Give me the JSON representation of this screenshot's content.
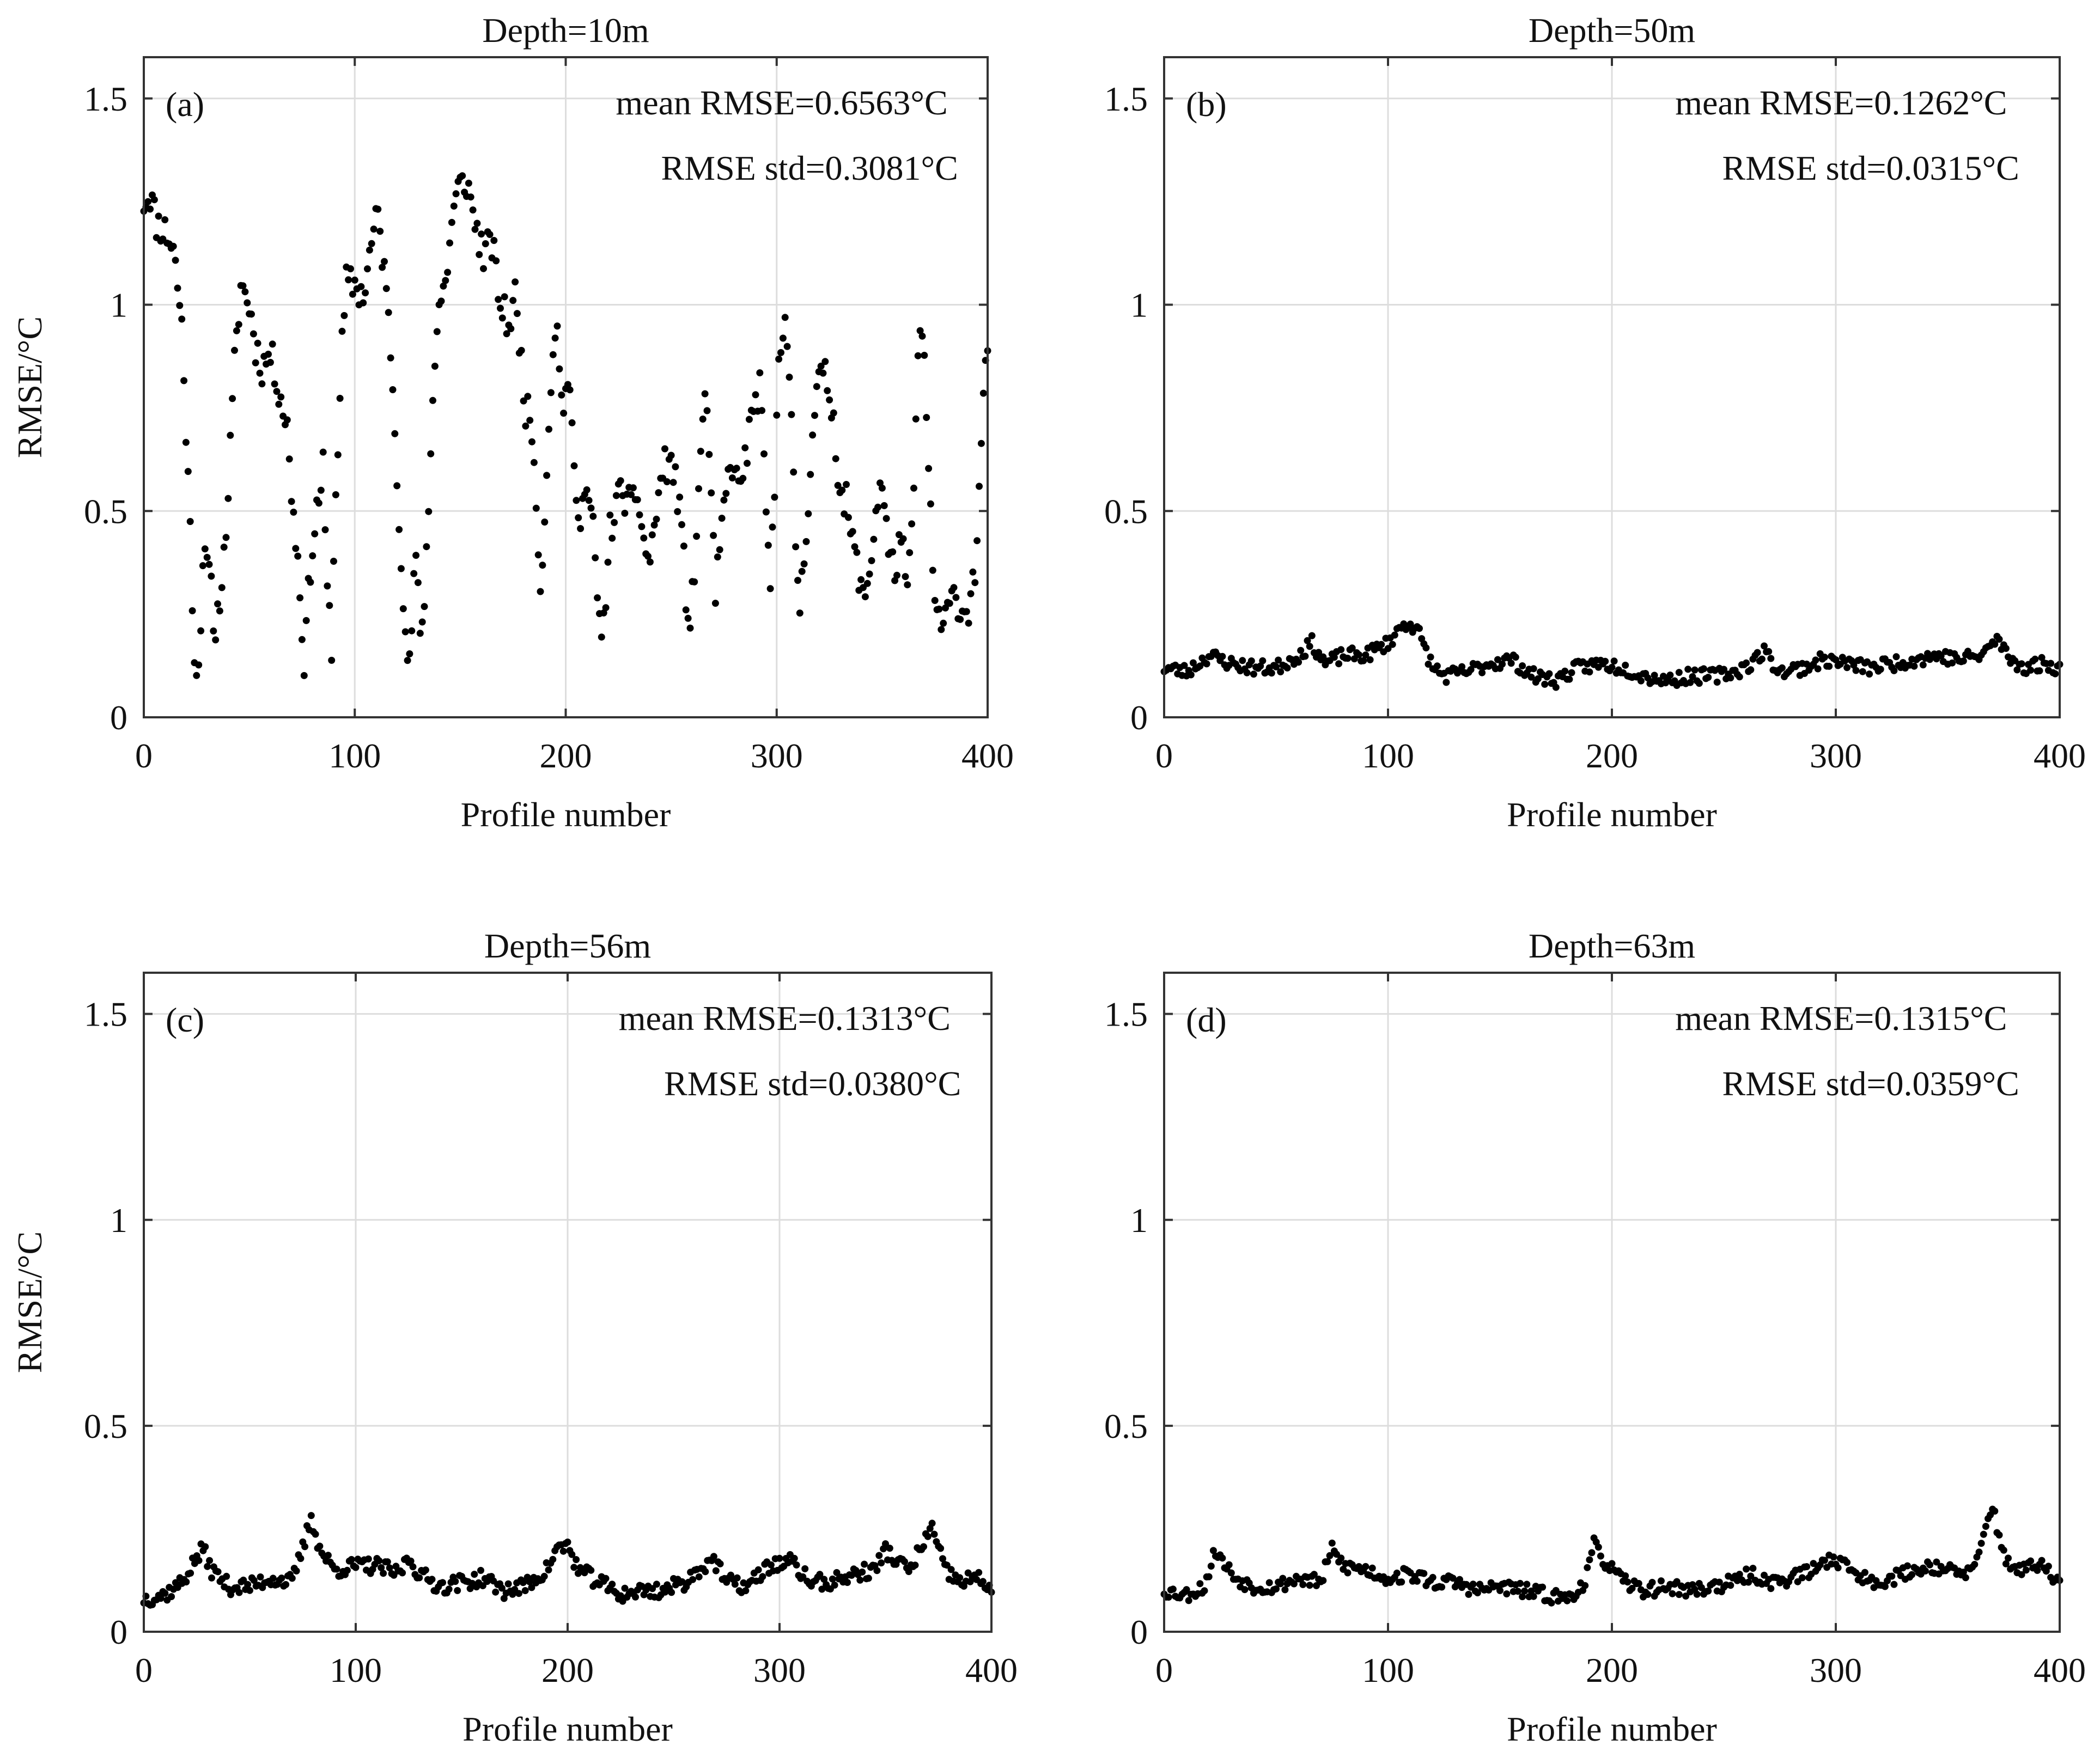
{
  "figure": {
    "type": "scatter-panels",
    "xlabel": "Profile number",
    "ylabel": "RMSE/°C",
    "x_ticks": [
      "0",
      "100",
      "200",
      "300",
      "400"
    ],
    "y_ticks": [
      "0",
      "0.5",
      "1",
      "1.5"
    ],
    "marker_color": "#000000"
  },
  "chart_data": [
    {
      "type": "scatter",
      "panel": "(a)",
      "title": "Depth=10m",
      "mean_label": "mean RMSE=0.6563°C",
      "std_label": "RMSE std=0.3081°C",
      "xlabel": "Profile number",
      "ylabel": "RMSE/°C",
      "xlim": [
        0,
        400
      ],
      "ylim": [
        0,
        1.6
      ],
      "anchors": [
        [
          0,
          1.25
        ],
        [
          3,
          1.27
        ],
        [
          6,
          1.2
        ],
        [
          10,
          1.18
        ],
        [
          14,
          1.14
        ],
        [
          16,
          1.05
        ],
        [
          18,
          0.95
        ],
        [
          20,
          0.7
        ],
        [
          22,
          0.45
        ],
        [
          24,
          0.15
        ],
        [
          26,
          0.12
        ],
        [
          28,
          0.38
        ],
        [
          31,
          0.35
        ],
        [
          34,
          0.2
        ],
        [
          36,
          0.3
        ],
        [
          38,
          0.38
        ],
        [
          40,
          0.55
        ],
        [
          43,
          0.85
        ],
        [
          46,
          1.05
        ],
        [
          50,
          1.0
        ],
        [
          53,
          0.9
        ],
        [
          56,
          0.85
        ],
        [
          60,
          0.88
        ],
        [
          64,
          0.8
        ],
        [
          68,
          0.7
        ],
        [
          70,
          0.55
        ],
        [
          73,
          0.38
        ],
        [
          76,
          0.14
        ],
        [
          79,
          0.37
        ],
        [
          82,
          0.5
        ],
        [
          85,
          0.6
        ],
        [
          87,
          0.3
        ],
        [
          89,
          0.18
        ],
        [
          91,
          0.55
        ],
        [
          94,
          0.9
        ],
        [
          96,
          1.05
        ],
        [
          100,
          1.05
        ],
        [
          104,
          1.02
        ],
        [
          108,
          1.15
        ],
        [
          111,
          1.22
        ],
        [
          114,
          1.08
        ],
        [
          117,
          0.9
        ],
        [
          120,
          0.6
        ],
        [
          123,
          0.3
        ],
        [
          125,
          0.1
        ],
        [
          127,
          0.22
        ],
        [
          129,
          0.4
        ],
        [
          131,
          0.18
        ],
        [
          133,
          0.3
        ],
        [
          135,
          0.5
        ],
        [
          137,
          0.8
        ],
        [
          140,
          1.0
        ],
        [
          143,
          1.05
        ],
        [
          146,
          1.2
        ],
        [
          149,
          1.28
        ],
        [
          153,
          1.3
        ],
        [
          157,
          1.2
        ],
        [
          161,
          1.12
        ],
        [
          165,
          1.15
        ],
        [
          169,
          1.0
        ],
        [
          173,
          0.95
        ],
        [
          176,
          1.02
        ],
        [
          178,
          0.92
        ],
        [
          181,
          0.75
        ],
        [
          184,
          0.7
        ],
        [
          186,
          0.55
        ],
        [
          188,
          0.3
        ],
        [
          190,
          0.5
        ],
        [
          193,
          0.82
        ],
        [
          196,
          0.95
        ],
        [
          199,
          0.72
        ],
        [
          202,
          0.82
        ],
        [
          204,
          0.58
        ],
        [
          207,
          0.5
        ],
        [
          210,
          0.55
        ],
        [
          213,
          0.45
        ],
        [
          215,
          0.3
        ],
        [
          217,
          0.17
        ],
        [
          219,
          0.3
        ],
        [
          221,
          0.45
        ],
        [
          224,
          0.52
        ],
        [
          227,
          0.55
        ],
        [
          231,
          0.5
        ],
        [
          234,
          0.55
        ],
        [
          237,
          0.42
        ],
        [
          240,
          0.38
        ],
        [
          243,
          0.5
        ],
        [
          246,
          0.6
        ],
        [
          249,
          0.62
        ],
        [
          252,
          0.58
        ],
        [
          255,
          0.45
        ],
        [
          257,
          0.3
        ],
        [
          259,
          0.22
        ],
        [
          261,
          0.35
        ],
        [
          263,
          0.55
        ],
        [
          265,
          0.72
        ],
        [
          267,
          0.78
        ],
        [
          269,
          0.5
        ],
        [
          271,
          0.3
        ],
        [
          273,
          0.4
        ],
        [
          276,
          0.55
        ],
        [
          279,
          0.62
        ],
        [
          282,
          0.55
        ],
        [
          286,
          0.65
        ],
        [
          289,
          0.75
        ],
        [
          292,
          0.8
        ],
        [
          295,
          0.5
        ],
        [
          297,
          0.3
        ],
        [
          299,
          0.55
        ],
        [
          301,
          0.9
        ],
        [
          304,
          0.98
        ],
        [
          307,
          0.7
        ],
        [
          309,
          0.42
        ],
        [
          311,
          0.27
        ],
        [
          314,
          0.45
        ],
        [
          317,
          0.7
        ],
        [
          320,
          0.82
        ],
        [
          324,
          0.82
        ],
        [
          327,
          0.72
        ],
        [
          330,
          0.55
        ],
        [
          333,
          0.52
        ],
        [
          336,
          0.42
        ],
        [
          339,
          0.35
        ],
        [
          341,
          0.28
        ],
        [
          344,
          0.35
        ],
        [
          347,
          0.5
        ],
        [
          350,
          0.58
        ],
        [
          353,
          0.4
        ],
        [
          356,
          0.35
        ],
        [
          359,
          0.45
        ],
        [
          362,
          0.28
        ],
        [
          364,
          0.45
        ],
        [
          366,
          0.7
        ],
        [
          368,
          0.98
        ],
        [
          370,
          0.85
        ],
        [
          372,
          0.6
        ],
        [
          374,
          0.35
        ],
        [
          376,
          0.25
        ],
        [
          379,
          0.22
        ],
        [
          382,
          0.27
        ],
        [
          385,
          0.3
        ],
        [
          388,
          0.25
        ],
        [
          391,
          0.27
        ],
        [
          394,
          0.35
        ],
        [
          396,
          0.55
        ],
        [
          398,
          0.75
        ],
        [
          400,
          0.9
        ]
      ],
      "noise": 0.045,
      "seed": 11
    },
    {
      "type": "scatter",
      "panel": "(b)",
      "title": "Depth=50m",
      "mean_label": "mean RMSE=0.1262°C",
      "std_label": "RMSE std=0.0315°C",
      "xlabel": "Profile number",
      "ylabel": "",
      "xlim": [
        0,
        400
      ],
      "ylim": [
        0,
        1.6
      ],
      "anchors": [
        [
          0,
          0.12
        ],
        [
          10,
          0.11
        ],
        [
          20,
          0.15
        ],
        [
          30,
          0.13
        ],
        [
          40,
          0.12
        ],
        [
          50,
          0.12
        ],
        [
          60,
          0.15
        ],
        [
          66,
          0.18
        ],
        [
          72,
          0.13
        ],
        [
          80,
          0.15
        ],
        [
          90,
          0.15
        ],
        [
          100,
          0.18
        ],
        [
          106,
          0.22
        ],
        [
          110,
          0.23
        ],
        [
          114,
          0.2
        ],
        [
          120,
          0.12
        ],
        [
          126,
          0.1
        ],
        [
          135,
          0.11
        ],
        [
          145,
          0.13
        ],
        [
          155,
          0.14
        ],
        [
          165,
          0.1
        ],
        [
          175,
          0.09
        ],
        [
          185,
          0.12
        ],
        [
          195,
          0.13
        ],
        [
          205,
          0.12
        ],
        [
          215,
          0.1
        ],
        [
          225,
          0.09
        ],
        [
          235,
          0.1
        ],
        [
          245,
          0.1
        ],
        [
          255,
          0.11
        ],
        [
          262,
          0.13
        ],
        [
          268,
          0.16
        ],
        [
          275,
          0.11
        ],
        [
          285,
          0.12
        ],
        [
          295,
          0.14
        ],
        [
          305,
          0.13
        ],
        [
          315,
          0.12
        ],
        [
          325,
          0.13
        ],
        [
          335,
          0.14
        ],
        [
          345,
          0.15
        ],
        [
          355,
          0.14
        ],
        [
          365,
          0.15
        ],
        [
          372,
          0.19
        ],
        [
          378,
          0.14
        ],
        [
          385,
          0.12
        ],
        [
          392,
          0.13
        ],
        [
          400,
          0.12
        ]
      ],
      "noise": 0.018,
      "seed": 23
    },
    {
      "type": "scatter",
      "panel": "(c)",
      "title": "Depth=56m",
      "mean_label": "mean RMSE=0.1313°C",
      "std_label": "RMSE std=0.0380°C",
      "xlabel": "Profile number",
      "ylabel": "RMSE/°C",
      "xlim": [
        0,
        400
      ],
      "ylim": [
        0,
        1.6
      ],
      "anchors": [
        [
          0,
          0.08
        ],
        [
          10,
          0.09
        ],
        [
          18,
          0.12
        ],
        [
          25,
          0.18
        ],
        [
          28,
          0.2
        ],
        [
          32,
          0.15
        ],
        [
          40,
          0.11
        ],
        [
          50,
          0.11
        ],
        [
          60,
          0.13
        ],
        [
          70,
          0.12
        ],
        [
          76,
          0.22
        ],
        [
          79,
          0.28
        ],
        [
          83,
          0.2
        ],
        [
          90,
          0.15
        ],
        [
          100,
          0.16
        ],
        [
          110,
          0.16
        ],
        [
          120,
          0.14
        ],
        [
          125,
          0.18
        ],
        [
          130,
          0.14
        ],
        [
          140,
          0.11
        ],
        [
          150,
          0.12
        ],
        [
          160,
          0.13
        ],
        [
          170,
          0.1
        ],
        [
          180,
          0.11
        ],
        [
          190,
          0.15
        ],
        [
          195,
          0.2
        ],
        [
          200,
          0.21
        ],
        [
          205,
          0.15
        ],
        [
          215,
          0.12
        ],
        [
          225,
          0.09
        ],
        [
          235,
          0.1
        ],
        [
          245,
          0.1
        ],
        [
          255,
          0.12
        ],
        [
          262,
          0.15
        ],
        [
          268,
          0.18
        ],
        [
          275,
          0.12
        ],
        [
          285,
          0.11
        ],
        [
          295,
          0.16
        ],
        [
          305,
          0.17
        ],
        [
          315,
          0.12
        ],
        [
          325,
          0.12
        ],
        [
          335,
          0.14
        ],
        [
          345,
          0.15
        ],
        [
          350,
          0.2
        ],
        [
          355,
          0.17
        ],
        [
          362,
          0.15
        ],
        [
          368,
          0.22
        ],
        [
          372,
          0.25
        ],
        [
          378,
          0.15
        ],
        [
          385,
          0.12
        ],
        [
          392,
          0.13
        ],
        [
          400,
          0.11
        ]
      ],
      "noise": 0.02,
      "seed": 37
    },
    {
      "type": "scatter",
      "panel": "(d)",
      "title": "Depth=63m",
      "mean_label": "mean RMSE=0.1315°C",
      "std_label": "RMSE std=0.0359°C",
      "xlabel": "Profile number",
      "ylabel": "",
      "xlim": [
        0,
        400
      ],
      "ylim": [
        0,
        1.6
      ],
      "anchors": [
        [
          0,
          0.1
        ],
        [
          10,
          0.09
        ],
        [
          18,
          0.11
        ],
        [
          23,
          0.2
        ],
        [
          26,
          0.17
        ],
        [
          32,
          0.13
        ],
        [
          40,
          0.11
        ],
        [
          50,
          0.11
        ],
        [
          60,
          0.13
        ],
        [
          70,
          0.12
        ],
        [
          75,
          0.2
        ],
        [
          80,
          0.16
        ],
        [
          90,
          0.15
        ],
        [
          100,
          0.13
        ],
        [
          110,
          0.14
        ],
        [
          120,
          0.12
        ],
        [
          130,
          0.12
        ],
        [
          140,
          0.1
        ],
        [
          150,
          0.11
        ],
        [
          160,
          0.1
        ],
        [
          170,
          0.09
        ],
        [
          180,
          0.08
        ],
        [
          188,
          0.12
        ],
        [
          192,
          0.21
        ],
        [
          197,
          0.17
        ],
        [
          205,
          0.12
        ],
        [
          215,
          0.1
        ],
        [
          225,
          0.11
        ],
        [
          235,
          0.1
        ],
        [
          245,
          0.11
        ],
        [
          255,
          0.12
        ],
        [
          262,
          0.14
        ],
        [
          270,
          0.12
        ],
        [
          280,
          0.13
        ],
        [
          290,
          0.15
        ],
        [
          298,
          0.18
        ],
        [
          305,
          0.16
        ],
        [
          315,
          0.12
        ],
        [
          325,
          0.13
        ],
        [
          335,
          0.15
        ],
        [
          345,
          0.16
        ],
        [
          355,
          0.14
        ],
        [
          362,
          0.15
        ],
        [
          367,
          0.25
        ],
        [
          370,
          0.31
        ],
        [
          375,
          0.18
        ],
        [
          382,
          0.15
        ],
        [
          392,
          0.16
        ],
        [
          400,
          0.12
        ]
      ],
      "noise": 0.018,
      "seed": 53
    }
  ]
}
